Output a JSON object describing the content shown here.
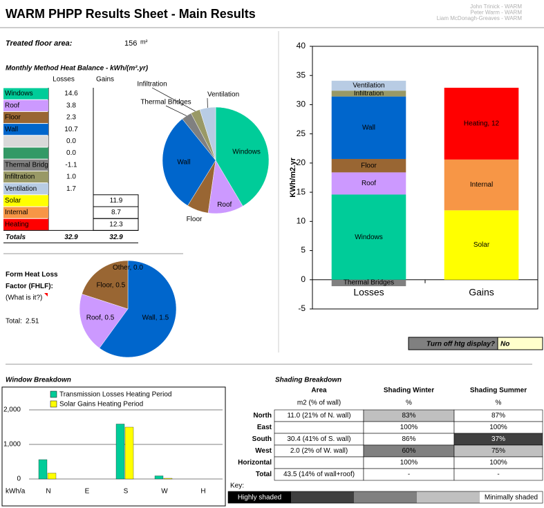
{
  "header": {
    "title": "WARM PHPP Results Sheet - Main Results",
    "credits": [
      "John Trinick - WARM",
      "Peter Warm - WARM",
      "Liam McDonagh-Greaves - WARM"
    ]
  },
  "floor_area": {
    "label": "Treated floor area:",
    "value": 156,
    "unit": "m²"
  },
  "heat_balance": {
    "title": "Monthly Method Heat Balance - kWh/(m².yr)",
    "columns": [
      "Losses",
      "Gains"
    ],
    "rows": [
      {
        "name": "Windows",
        "color": "#00cc99",
        "losses": 14.6,
        "gains": null
      },
      {
        "name": "Roof",
        "color": "#cc99ff",
        "losses": 3.8,
        "gains": null
      },
      {
        "name": "Floor",
        "color": "#996633",
        "losses": 2.3,
        "gains": null
      },
      {
        "name": "Wall",
        "color": "#0066cc",
        "losses": 10.7,
        "gains": null
      },
      {
        "name": null,
        "color": "#d9d9d9",
        "losses": {
          "value": 0,
          "label": "0.0"
        },
        "gains": null
      },
      {
        "name": null,
        "color": "#339966",
        "losses": {
          "value": 0,
          "label": "0.0"
        },
        "gains": null
      },
      {
        "name": "Thermal Bridges",
        "color": "#808080",
        "losses": -1.1,
        "gains": null
      },
      {
        "name": "Infiltration",
        "color": "#999966",
        "losses": {
          "value": 1,
          "label": "1.0"
        },
        "gains": null
      },
      {
        "name": "Ventilation",
        "color": "#b8cce4",
        "losses": 1.7,
        "gains": null
      },
      {
        "name": "Solar",
        "color": "#ffff00",
        "losses": null,
        "gains": 11.9
      },
      {
        "name": "Internal",
        "color": "#f79646",
        "losses": null,
        "gains": 8.7
      },
      {
        "name": "Heating",
        "color": "#ff0000",
        "losses": null,
        "gains": 12.3,
        "bar_label": "Heating, 12"
      }
    ],
    "totals": {
      "label": "Totals",
      "losses": 32.9,
      "gains": 32.9
    }
  },
  "bar_chart": {
    "type": "bar",
    "stacked": true,
    "categories": [
      "Losses",
      "Gains"
    ],
    "y_label": "KWh/m2.yr",
    "ylim": [
      -5,
      40
    ],
    "yticks": [
      -5,
      0,
      5,
      10,
      15,
      20,
      25,
      30,
      35,
      40
    ]
  },
  "htg_display": {
    "label": "Turn off htg display?",
    "value": "No"
  },
  "fhlf": {
    "type": "pie",
    "title": "Form Heat Loss Factor (FHLF):",
    "link": "(What is it?)",
    "total_label": "Total:",
    "total": 2.51,
    "values": [
      1.5,
      0.5,
      0.5,
      0
    ],
    "value_labels": [
      "Wall, 1.5",
      "Roof, 0.5",
      "Floor, 0.5",
      "Other, 0.0"
    ],
    "colors": [
      "#0066cc",
      "#cc99ff",
      "#996633",
      "#808080"
    ]
  },
  "window_breakdown": {
    "type": "bar",
    "title": "Window Breakdown",
    "categories": [
      "N",
      "E",
      "S",
      "W",
      "H"
    ],
    "y_unit": "kWh/a",
    "ylim": [
      0,
      2500
    ],
    "yticks": [
      0,
      {
        "value": 1000,
        "label": "1,000"
      },
      {
        "value": 2000,
        "label": "2,000"
      }
    ],
    "grid": true,
    "series": [
      {
        "name": "Transmission Losses Heating Period",
        "color": "#00cc99",
        "values": [
          560,
          0,
          1590,
          90,
          0
        ]
      },
      {
        "name": "Solar Gains Heating Period",
        "color": "#ffff00",
        "values": [
          170,
          0,
          1500,
          20,
          0
        ]
      }
    ]
  },
  "shading": {
    "title": "Shading Breakdown",
    "columns": [
      "Area",
      "Shading Winter",
      "Shading Summer"
    ],
    "units": [
      "m2 (% of wall)",
      "%",
      "%"
    ],
    "rows": [
      {
        "name": "North",
        "area": "11.0 (21% of N. wall)",
        "winter": {
          "text": "83%",
          "fill": "#c0c0c0"
        },
        "summer": {
          "text": "87%",
          "fill": "#ffffff"
        }
      },
      {
        "name": "East",
        "area": null,
        "winter": {
          "text": "100%",
          "fill": "#ffffff"
        },
        "summer": {
          "text": "100%",
          "fill": "#ffffff"
        }
      },
      {
        "name": "South",
        "area": "30.4 (41% of S. wall)",
        "winter": {
          "text": "86%",
          "fill": "#ffffff"
        },
        "summer": {
          "text": "37%",
          "fill": "#404040"
        }
      },
      {
        "name": "West",
        "area": "2.0 (2% of W. wall)",
        "winter": {
          "text": "60%",
          "fill": "#808080"
        },
        "summer": {
          "text": "75%",
          "fill": "#c0c0c0"
        }
      },
      {
        "name": "Horizontal",
        "area": null,
        "winter": {
          "text": "100%",
          "fill": "#ffffff"
        },
        "summer": {
          "text": "100%",
          "fill": "#ffffff"
        }
      },
      {
        "name": "Total",
        "area": "43.5 (14% of wall+roof)",
        "winter": {
          "text": "-",
          "fill": "#ffffff"
        },
        "summer": {
          "text": "-",
          "fill": "#ffffff"
        }
      }
    ],
    "key": {
      "label": "Key:",
      "low": "Highly shaded",
      "high": "Minimally shaded",
      "colors": [
        "#000000",
        "#404040",
        "#808080",
        "#c0c0c0",
        "#ffffff"
      ]
    }
  }
}
